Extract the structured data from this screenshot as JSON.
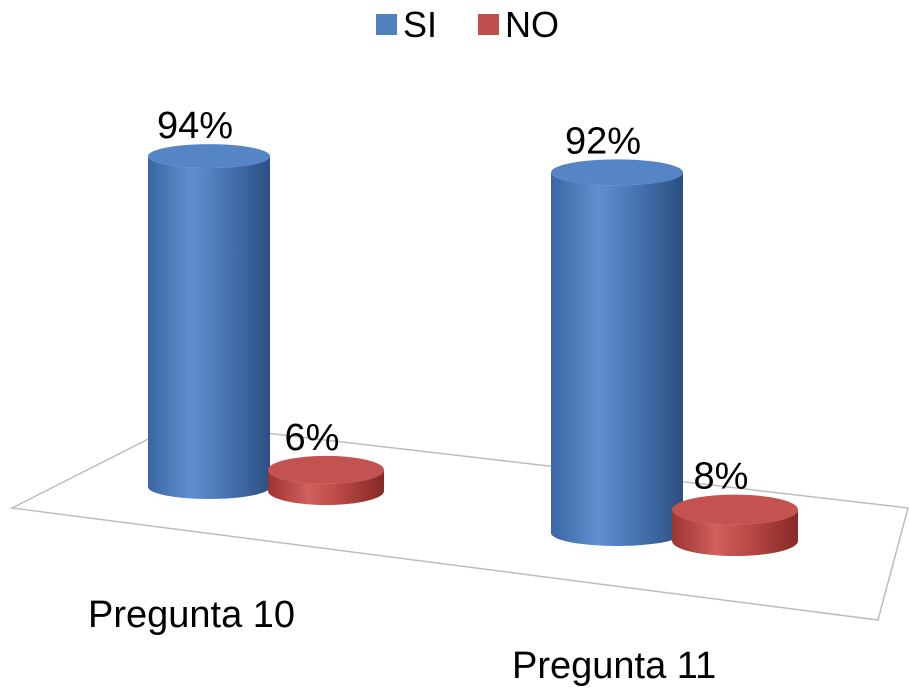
{
  "chart_data": {
    "type": "bar",
    "style": "3d-cylinder",
    "categories": [
      "Pregunta 10",
      "Pregunta 11"
    ],
    "series": [
      {
        "name": "SI",
        "values": [
          94,
          92
        ],
        "color": "#4f81bd"
      },
      {
        "name": "NO",
        "values": [
          6,
          8
        ],
        "color": "#c0504d"
      }
    ],
    "data_labels": [
      [
        "94%",
        "92%"
      ],
      [
        "6%",
        "8%"
      ]
    ],
    "value_unit": "%",
    "ylim": [
      0,
      100
    ],
    "title": "",
    "xlabel": "",
    "ylabel": "",
    "legend_position": "top",
    "grid": false
  }
}
